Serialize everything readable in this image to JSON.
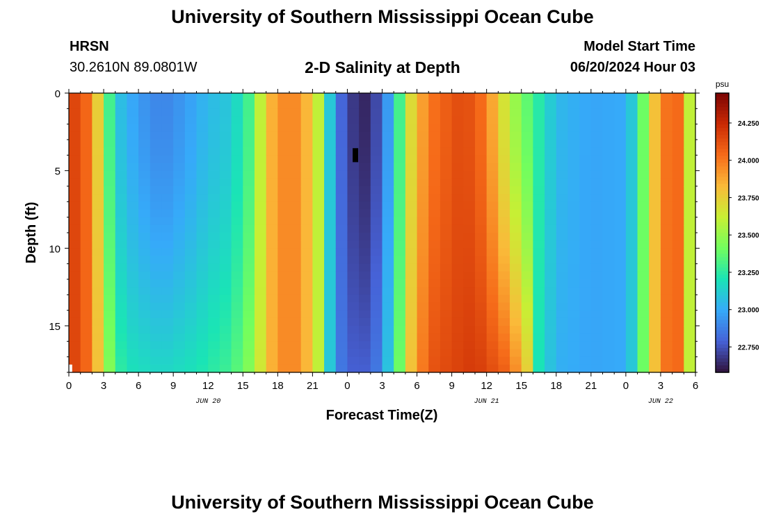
{
  "header": {
    "title": "University of Southern Mississippi Ocean Cube",
    "station": "HRSN",
    "latlon": "30.2610N  89.0801W",
    "subtitle": "2-D Salinity at Depth",
    "model_start_label": "Model Start Time",
    "model_start_value": "06/20/2024 Hour 03"
  },
  "footer": {
    "title": "University of Southern Mississippi Ocean Cube"
  },
  "chart_data": {
    "type": "heatmap",
    "xlabel": "Forecast Time(Z)",
    "ylabel": "Depth (ft)",
    "x_hours": [
      0,
      54
    ],
    "x_tick_labels": [
      "0",
      "3",
      "6",
      "9",
      "12",
      "15",
      "18",
      "21",
      "0",
      "3",
      "6",
      "9",
      "12",
      "15",
      "18",
      "21",
      "0",
      "3",
      "6"
    ],
    "date_labels": [
      {
        "label": "JUN 20",
        "hour": 12
      },
      {
        "label": "JUN 21",
        "hour": 36
      },
      {
        "label": "JUN 22",
        "hour": 51
      }
    ],
    "ylim": [
      0,
      18
    ],
    "y_ticks": [
      0,
      5,
      10,
      15
    ],
    "colorbar": {
      "unit": "psu",
      "range": [
        22.58,
        24.45
      ],
      "ticks": [
        "22.750",
        "23.000",
        "23.250",
        "23.500",
        "23.750",
        "24.000",
        "24.250"
      ],
      "tick_values": [
        22.75,
        23.0,
        23.25,
        23.5,
        23.75,
        24.0,
        24.25
      ]
    },
    "colors": [
      "#30123b",
      "#4662d7",
      "#36aaf9",
      "#1ae4b6",
      "#72fe5e",
      "#c8ef34",
      "#faba39",
      "#f66b19",
      "#ca2a04",
      "#7a0403"
    ],
    "surface_salinity_profile": [
      {
        "hour": 0,
        "value": 24.2
      },
      {
        "hour": 2,
        "value": 24.0
      },
      {
        "hour": 3,
        "value": 23.5
      },
      {
        "hour": 4,
        "value": 23.1
      },
      {
        "hour": 6,
        "value": 22.95
      },
      {
        "hour": 8,
        "value": 22.88
      },
      {
        "hour": 10,
        "value": 22.95
      },
      {
        "hour": 12,
        "value": 23.05
      },
      {
        "hour": 14,
        "value": 23.1
      },
      {
        "hour": 15.5,
        "value": 23.3
      },
      {
        "hour": 17,
        "value": 23.75
      },
      {
        "hour": 18,
        "value": 23.95
      },
      {
        "hour": 20,
        "value": 23.95
      },
      {
        "hour": 21.5,
        "value": 23.6
      },
      {
        "hour": 22.5,
        "value": 23.1
      },
      {
        "hour": 23.5,
        "value": 22.8
      },
      {
        "hour": 25,
        "value": 22.62
      },
      {
        "hour": 26,
        "value": 22.65
      },
      {
        "hour": 27,
        "value": 22.8
      },
      {
        "hour": 28,
        "value": 23.1
      },
      {
        "hour": 29.5,
        "value": 23.7
      },
      {
        "hour": 31,
        "value": 24.0
      },
      {
        "hour": 34,
        "value": 24.15
      },
      {
        "hour": 36,
        "value": 24.0
      },
      {
        "hour": 37,
        "value": 23.75
      },
      {
        "hour": 38.5,
        "value": 23.5
      },
      {
        "hour": 40,
        "value": 23.3
      },
      {
        "hour": 42,
        "value": 23.05
      },
      {
        "hour": 45,
        "value": 22.98
      },
      {
        "hour": 48,
        "value": 23.0
      },
      {
        "hour": 49,
        "value": 23.2
      },
      {
        "hour": 50,
        "value": 23.6
      },
      {
        "hour": 51,
        "value": 24.0
      },
      {
        "hour": 53,
        "value": 24.05
      },
      {
        "hour": 53.5,
        "value": 23.6
      },
      {
        "hour": 54,
        "value": 23.1
      }
    ],
    "bottom_salinity_profile": [
      {
        "hour": 0,
        "value": 24.2
      },
      {
        "hour": 2,
        "value": 24.0
      },
      {
        "hour": 3,
        "value": 23.6
      },
      {
        "hour": 4,
        "value": 23.3
      },
      {
        "hour": 5,
        "value": 23.2
      },
      {
        "hour": 8,
        "value": 23.15
      },
      {
        "hour": 11,
        "value": 23.2
      },
      {
        "hour": 14,
        "value": 23.3
      },
      {
        "hour": 15.5,
        "value": 23.45
      },
      {
        "hour": 17,
        "value": 23.75
      },
      {
        "hour": 18,
        "value": 23.95
      },
      {
        "hour": 20,
        "value": 23.95
      },
      {
        "hour": 21.5,
        "value": 23.6
      },
      {
        "hour": 22.5,
        "value": 23.1
      },
      {
        "hour": 23.5,
        "value": 22.85
      },
      {
        "hour": 25,
        "value": 22.75
      },
      {
        "hour": 26.5,
        "value": 22.85
      },
      {
        "hour": 28,
        "value": 23.2
      },
      {
        "hour": 29.5,
        "value": 23.8
      },
      {
        "hour": 31,
        "value": 24.1
      },
      {
        "hour": 35,
        "value": 24.2
      },
      {
        "hour": 38,
        "value": 24.05
      },
      {
        "hour": 39.5,
        "value": 23.75
      },
      {
        "hour": 40.5,
        "value": 23.2
      },
      {
        "hour": 42,
        "value": 23.02
      },
      {
        "hour": 45,
        "value": 22.98
      },
      {
        "hour": 48,
        "value": 23.0
      },
      {
        "hour": 49,
        "value": 23.2
      },
      {
        "hour": 50,
        "value": 23.6
      },
      {
        "hour": 51,
        "value": 24.0
      },
      {
        "hour": 53,
        "value": 24.05
      },
      {
        "hour": 53.5,
        "value": 23.6
      },
      {
        "hour": 54,
        "value": 23.1
      }
    ],
    "markers": [
      {
        "name": "black-marker",
        "hour": 24.7,
        "depth_top": 3.55,
        "depth_bottom": 4.45,
        "color": "#000000"
      },
      {
        "name": "white-marker",
        "hour": 0.05,
        "depth_top": 17.5,
        "depth_bottom": 18,
        "color": "#ffffff"
      }
    ]
  }
}
